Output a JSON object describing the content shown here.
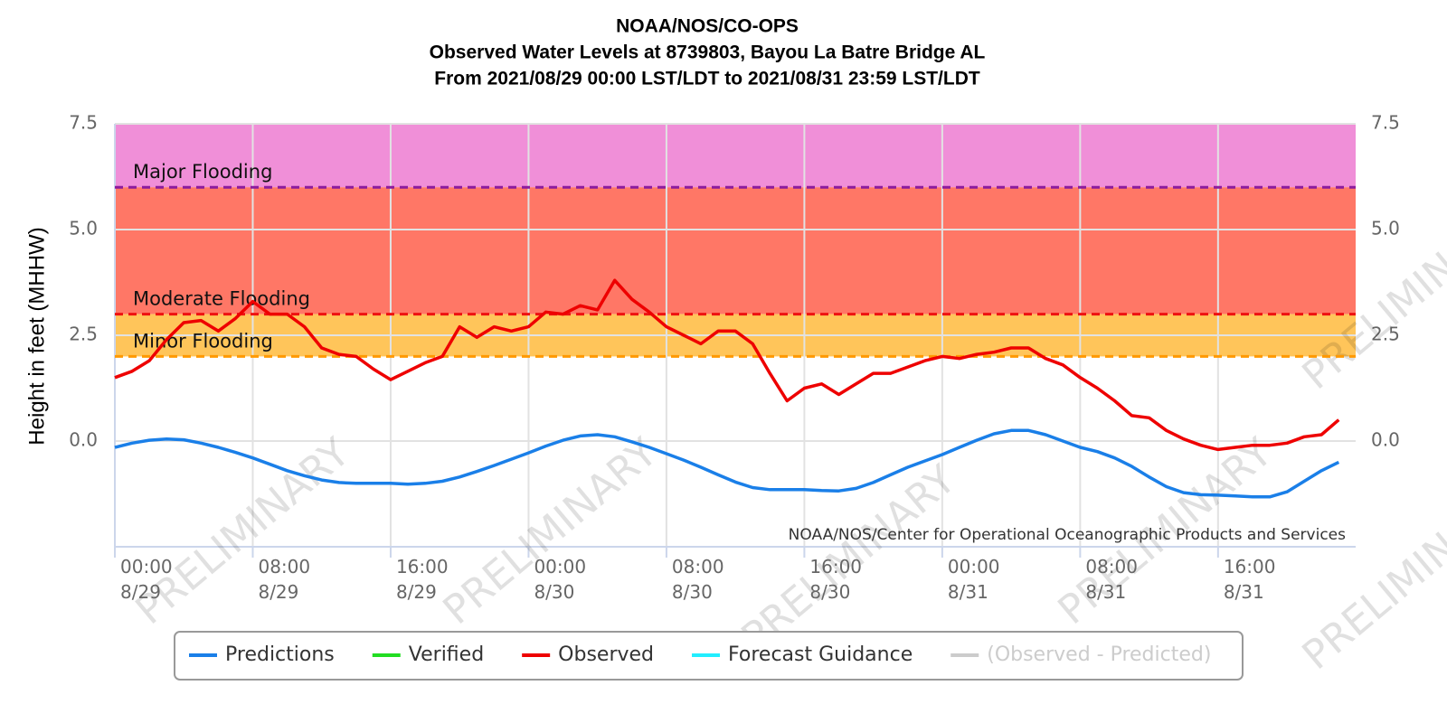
{
  "chart_data": {
    "type": "line",
    "title": "NOAA/NOS/CO-OPS",
    "subtitle_lines": [
      "Observed Water Levels at 8739803, Bayou La Batre Bridge AL",
      "From 2021/08/29 00:00 LST/LDT to 2021/08/31 23:59 LST/LDT"
    ],
    "y_label": "Height in feet (MHHW)",
    "credits": "NOAA/NOS/Center for Operational Oceanographic Products and Services",
    "watermark": "PRELIMINARY",
    "grid": true,
    "ylim": [
      -2.5,
      7.5
    ],
    "yticks": [
      {
        "value": 0,
        "label": "0.0"
      },
      2.5,
      {
        "value": 5,
        "label": "5.0"
      },
      7.5
    ],
    "xlim": [
      "8/29 00:00",
      "8/31 23:59"
    ],
    "xticks": [
      {
        "value": "8/29 00:00",
        "label": "00:00\n8/29"
      },
      {
        "value": "8/29 08:00",
        "label": "08:00\n8/29"
      },
      {
        "value": "8/29 16:00",
        "label": "16:00\n8/29"
      },
      {
        "value": "8/30 00:00",
        "label": "00:00\n8/30"
      },
      {
        "value": "8/30 08:00",
        "label": "08:00\n8/30"
      },
      {
        "value": "8/30 16:00",
        "label": "16:00\n8/30"
      },
      {
        "value": "8/31 00:00",
        "label": "00:00\n8/31"
      },
      {
        "value": "8/31 08:00",
        "label": "08:00\n8/31"
      },
      {
        "value": "8/31 16:00",
        "label": "16:00\n8/31"
      }
    ],
    "thresholds": [
      {
        "label": "Major Flooding",
        "value": 6,
        "color": "#8b1c9e",
        "band_color": "#f08fd8"
      },
      {
        "label": "Moderate Flooding",
        "value": 3,
        "color": "#ee1111",
        "band_color": "#ff7766"
      },
      {
        "label": "Minor Flooding",
        "value": 2,
        "color": "#ff9900",
        "band_color": "#ffc55a"
      }
    ],
    "x": [
      "8/29 00:00",
      "8/29 01:00",
      "8/29 02:00",
      "8/29 03:00",
      "8/29 04:00",
      "8/29 05:00",
      "8/29 06:00",
      "8/29 07:00",
      "8/29 08:00",
      "8/29 09:00",
      "8/29 10:00",
      "8/29 11:00",
      "8/29 12:00",
      "8/29 13:00",
      "8/29 14:00",
      "8/29 15:00",
      "8/29 16:00",
      "8/29 17:00",
      "8/29 18:00",
      "8/29 19:00",
      "8/29 20:00",
      "8/29 21:00",
      "8/29 22:00",
      "8/29 23:00",
      "8/30 00:00",
      "8/30 01:00",
      "8/30 02:00",
      "8/30 03:00",
      "8/30 04:00",
      "8/30 05:00",
      "8/30 06:00",
      "8/30 07:00",
      "8/30 08:00",
      "8/30 09:00",
      "8/30 10:00",
      "8/30 11:00",
      "8/30 12:00",
      "8/30 13:00",
      "8/30 14:00",
      "8/30 15:00",
      "8/30 16:00",
      "8/30 17:00",
      "8/30 18:00",
      "8/30 19:00",
      "8/30 20:00",
      "8/30 21:00",
      "8/30 22:00",
      "8/30 23:00",
      "8/31 00:00",
      "8/31 01:00",
      "8/31 02:00",
      "8/31 03:00",
      "8/31 04:00",
      "8/31 05:00",
      "8/31 06:00",
      "8/31 07:00",
      "8/31 08:00",
      "8/31 09:00",
      "8/31 10:00",
      "8/31 11:00",
      "8/31 12:00",
      "8/31 13:00",
      "8/31 14:00",
      "8/31 15:00",
      "8/31 16:00",
      "8/31 17:00",
      "8/31 18:00",
      "8/31 19:00",
      "8/31 20:00",
      "8/31 21:00",
      "8/31 22:00",
      "8/31 23:00"
    ],
    "series": [
      {
        "name": "Predictions",
        "color": "#1a7fe8",
        "values": [
          -0.15,
          -0.05,
          0.02,
          0.05,
          0.03,
          -0.05,
          -0.15,
          -0.27,
          -0.4,
          -0.55,
          -0.7,
          -0.82,
          -0.92,
          -0.98,
          -1.0,
          -1.0,
          -1.0,
          -1.02,
          -1.0,
          -0.95,
          -0.85,
          -0.72,
          -0.58,
          -0.43,
          -0.28,
          -0.12,
          0.02,
          0.12,
          0.15,
          0.1,
          -0.02,
          -0.15,
          -0.3,
          -0.45,
          -0.62,
          -0.8,
          -0.97,
          -1.1,
          -1.15,
          -1.15,
          -1.15,
          -1.17,
          -1.18,
          -1.12,
          -0.98,
          -0.8,
          -0.62,
          -0.47,
          -0.32,
          -0.15,
          0.02,
          0.17,
          0.25,
          0.25,
          0.15,
          0.0,
          -0.15,
          -0.25,
          -0.4,
          -0.6,
          -0.85,
          -1.08,
          -1.22,
          -1.27,
          -1.28,
          -1.3,
          -1.32,
          -1.32,
          -1.2,
          -0.95,
          -0.7,
          -0.5
        ]
      },
      {
        "name": "Verified",
        "color": "#22dd22",
        "values": [
          null,
          null,
          null,
          null,
          null,
          null,
          null,
          null,
          null,
          null,
          null,
          null,
          null,
          null,
          null,
          null,
          null,
          null,
          null,
          null,
          null,
          null,
          null,
          null,
          null,
          null,
          null,
          null,
          null,
          null,
          null,
          null,
          null,
          null,
          null,
          null,
          null,
          null,
          null,
          null,
          null,
          null,
          null,
          null,
          null,
          null,
          null,
          null,
          null,
          null,
          null,
          null,
          null,
          null,
          null,
          null,
          null,
          null,
          null,
          null,
          null,
          null,
          null,
          null,
          null,
          null,
          null,
          null,
          null,
          null,
          null,
          null
        ]
      },
      {
        "name": "Observed",
        "color": "#ee0000",
        "values": [
          1.5,
          1.65,
          1.9,
          2.4,
          2.8,
          2.85,
          2.6,
          2.9,
          3.3,
          3.0,
          3.0,
          2.7,
          2.2,
          2.05,
          2.0,
          1.7,
          1.45,
          1.65,
          1.85,
          2.0,
          2.7,
          2.45,
          2.7,
          2.6,
          2.7,
          3.05,
          3.0,
          3.2,
          3.1,
          3.8,
          3.35,
          3.05,
          2.7,
          2.5,
          2.3,
          2.6,
          2.6,
          2.3,
          1.6,
          0.95,
          1.25,
          1.35,
          1.1,
          1.35,
          1.6,
          1.6,
          1.75,
          1.9,
          2.0,
          1.95,
          2.05,
          2.1,
          2.2,
          2.2,
          1.95,
          1.8,
          1.5,
          1.25,
          0.95,
          0.6,
          0.55,
          0.25,
          0.05,
          -0.1,
          -0.2,
          -0.15,
          -0.1,
          -0.1,
          -0.05,
          0.1,
          0.15,
          0.5
        ]
      },
      {
        "name": "Forecast Guidance",
        "color": "#22eeff",
        "values": [
          null,
          null,
          null,
          null,
          null,
          null,
          null,
          null,
          null,
          null,
          null,
          null,
          null,
          null,
          null,
          null,
          null,
          null,
          null,
          null,
          null,
          null,
          null,
          null,
          null,
          null,
          null,
          null,
          null,
          null,
          null,
          null,
          null,
          null,
          null,
          null,
          null,
          null,
          null,
          null,
          null,
          null,
          null,
          null,
          null,
          null,
          null,
          null,
          null,
          null,
          null,
          null,
          null,
          null,
          null,
          null,
          null,
          null,
          null,
          null,
          null,
          null,
          null,
          null,
          null,
          null,
          null,
          null,
          null,
          null,
          null,
          null
        ]
      },
      {
        "name": "(Observed - Predicted)",
        "color": "#cccccc",
        "hidden": true,
        "values": [
          null,
          null,
          null,
          null,
          null,
          null,
          null,
          null,
          null,
          null,
          null,
          null,
          null,
          null,
          null,
          null,
          null,
          null,
          null,
          null,
          null,
          null,
          null,
          null,
          null,
          null,
          null,
          null,
          null,
          null,
          null,
          null,
          null,
          null,
          null,
          null,
          null,
          null,
          null,
          null,
          null,
          null,
          null,
          null,
          null,
          null,
          null,
          null,
          null,
          null,
          null,
          null,
          null,
          null,
          null,
          null,
          null,
          null,
          null,
          null,
          null,
          null,
          null,
          null,
          null,
          null,
          null,
          null,
          null,
          null,
          null,
          null
        ]
      }
    ]
  }
}
